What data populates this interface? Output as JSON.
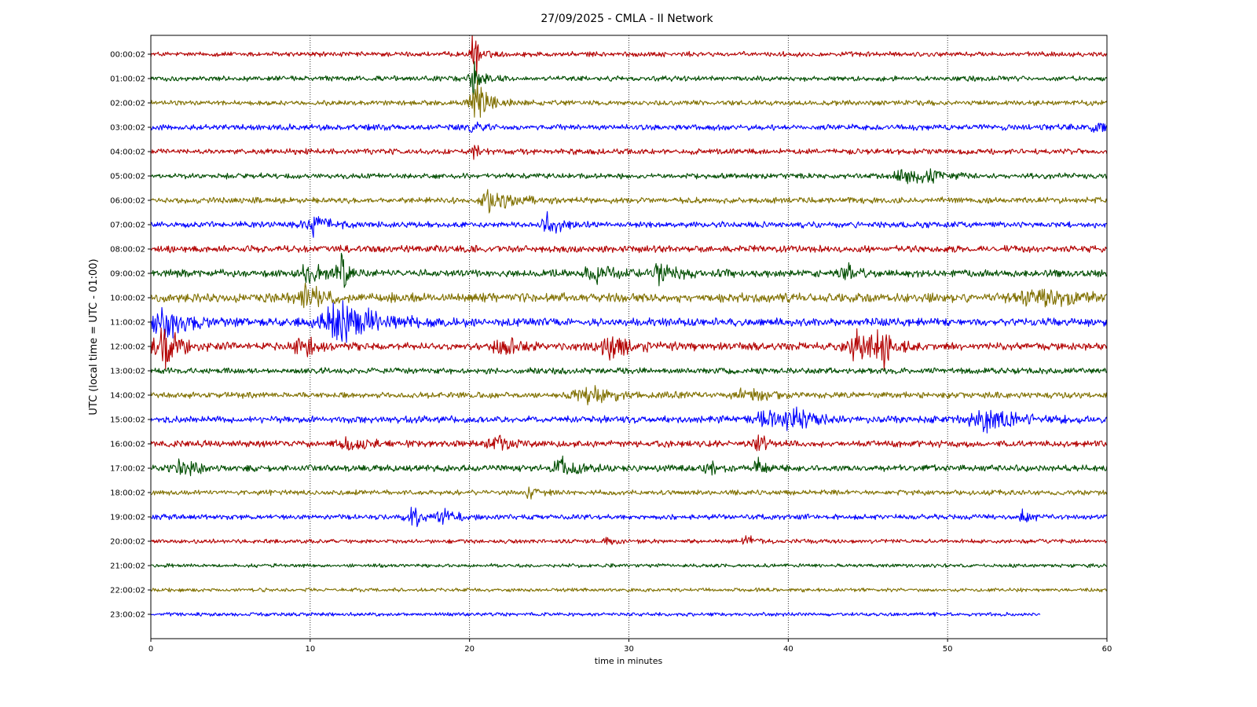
{
  "chart_data": {
    "type": "line",
    "title": "27/09/2025 - CMLA - II Network",
    "xlabel": "time in minutes",
    "ylabel": "UTC (local time = UTC - 01:00)",
    "xlim": [
      0,
      60
    ],
    "x_ticks": [
      0,
      10,
      20,
      30,
      40,
      50,
      60
    ],
    "grid": "vertical-dotted",
    "trace_colors": [
      "#b30000",
      "#004d00",
      "#807000",
      "#0000ff"
    ],
    "rows": [
      {
        "label": "00:00:02",
        "end_min": 60,
        "amplitude": 0.22,
        "events": [
          {
            "t": 20.3,
            "amp": 2.6,
            "dur": 0.5
          }
        ]
      },
      {
        "label": "01:00:02",
        "end_min": 60,
        "amplitude": 0.22,
        "events": [
          {
            "t": 20.3,
            "amp": 1.6,
            "dur": 0.8
          }
        ]
      },
      {
        "label": "02:00:02",
        "end_min": 60,
        "amplitude": 0.22,
        "events": [
          {
            "t": 20.5,
            "amp": 1.6,
            "dur": 1.2
          }
        ]
      },
      {
        "label": "03:00:02",
        "end_min": 60,
        "amplitude": 0.26,
        "events": [
          {
            "t": 20.2,
            "amp": 1.0,
            "dur": 0.5
          },
          {
            "t": 59.3,
            "amp": 0.5,
            "dur": 1.0
          }
        ]
      },
      {
        "label": "04:00:02",
        "end_min": 60,
        "amplitude": 0.24,
        "events": [
          {
            "t": 20.3,
            "amp": 0.9,
            "dur": 0.6
          }
        ]
      },
      {
        "label": "05:00:02",
        "end_min": 60,
        "amplitude": 0.24,
        "events": [
          {
            "t": 47.2,
            "amp": 0.6,
            "dur": 1.5
          },
          {
            "t": 48.6,
            "amp": 0.8,
            "dur": 1.0
          }
        ]
      },
      {
        "label": "06:00:02",
        "end_min": 60,
        "amplitude": 0.26,
        "events": [
          {
            "t": 21.5,
            "amp": 0.9,
            "dur": 2.0
          }
        ]
      },
      {
        "label": "07:00:02",
        "end_min": 60,
        "amplitude": 0.26,
        "events": [
          {
            "t": 10.2,
            "amp": 0.9,
            "dur": 1.5
          },
          {
            "t": 25.0,
            "amp": 1.1,
            "dur": 1.0
          }
        ]
      },
      {
        "label": "08:00:02",
        "end_min": 60,
        "amplitude": 0.3,
        "events": []
      },
      {
        "label": "09:00:02",
        "end_min": 60,
        "amplitude": 0.32,
        "events": [
          {
            "t": 10.0,
            "amp": 0.9,
            "dur": 1.5
          },
          {
            "t": 12.0,
            "amp": 1.3,
            "dur": 0.8
          },
          {
            "t": 28.0,
            "amp": 0.6,
            "dur": 2.0
          },
          {
            "t": 32.0,
            "amp": 0.9,
            "dur": 1.5
          },
          {
            "t": 43.6,
            "amp": 0.9,
            "dur": 1.0
          }
        ]
      },
      {
        "label": "10:00:02",
        "end_min": 60,
        "amplitude": 0.4,
        "events": [
          {
            "t": 9.8,
            "amp": 1.2,
            "dur": 1.5
          },
          {
            "t": 56.0,
            "amp": 0.5,
            "dur": 4.0
          }
        ]
      },
      {
        "label": "11:00:02",
        "end_min": 60,
        "amplitude": 0.34,
        "events": [
          {
            "t": 0.8,
            "amp": 1.8,
            "dur": 2.0
          },
          {
            "t": 12.0,
            "amp": 1.8,
            "dur": 3.5
          }
        ]
      },
      {
        "label": "12:00:02",
        "end_min": 60,
        "amplitude": 0.32,
        "events": [
          {
            "t": 0.8,
            "amp": 2.2,
            "dur": 1.5
          },
          {
            "t": 9.5,
            "amp": 1.0,
            "dur": 1.5
          },
          {
            "t": 21.9,
            "amp": 0.9,
            "dur": 1.5
          },
          {
            "t": 29.0,
            "amp": 0.9,
            "dur": 3.0
          },
          {
            "t": 44.5,
            "amp": 1.2,
            "dur": 2.0
          },
          {
            "t": 45.9,
            "amp": 1.8,
            "dur": 0.8
          }
        ]
      },
      {
        "label": "13:00:02",
        "end_min": 60,
        "amplitude": 0.26,
        "events": []
      },
      {
        "label": "14:00:02",
        "end_min": 60,
        "amplitude": 0.26,
        "events": [
          {
            "t": 27.5,
            "amp": 0.6,
            "dur": 3.0
          },
          {
            "t": 37.5,
            "amp": 0.6,
            "dur": 2.0
          }
        ]
      },
      {
        "label": "15:00:02",
        "end_min": 60,
        "amplitude": 0.3,
        "events": [
          {
            "t": 38.5,
            "amp": 0.9,
            "dur": 1.5
          },
          {
            "t": 40.5,
            "amp": 0.9,
            "dur": 2.0
          },
          {
            "t": 52.5,
            "amp": 0.8,
            "dur": 3.0
          }
        ]
      },
      {
        "label": "16:00:02",
        "end_min": 60,
        "amplitude": 0.28,
        "events": [
          {
            "t": 12.5,
            "amp": 0.6,
            "dur": 1.5
          },
          {
            "t": 21.8,
            "amp": 0.6,
            "dur": 1.5
          },
          {
            "t": 38.2,
            "amp": 0.6,
            "dur": 1.0
          }
        ]
      },
      {
        "label": "17:00:02",
        "end_min": 60,
        "amplitude": 0.28,
        "events": [
          {
            "t": 2.0,
            "amp": 0.6,
            "dur": 1.5
          },
          {
            "t": 25.8,
            "amp": 0.9,
            "dur": 1.5
          },
          {
            "t": 35.0,
            "amp": 0.5,
            "dur": 1.0
          },
          {
            "t": 38.1,
            "amp": 0.7,
            "dur": 0.6
          }
        ]
      },
      {
        "label": "18:00:02",
        "end_min": 60,
        "amplitude": 0.22,
        "events": [
          {
            "t": 23.8,
            "amp": 0.5,
            "dur": 0.8
          }
        ]
      },
      {
        "label": "19:00:02",
        "end_min": 60,
        "amplitude": 0.22,
        "events": [
          {
            "t": 16.5,
            "amp": 0.7,
            "dur": 1.5
          },
          {
            "t": 18.5,
            "amp": 0.6,
            "dur": 1.0
          },
          {
            "t": 54.8,
            "amp": 0.6,
            "dur": 0.8
          }
        ]
      },
      {
        "label": "20:00:02",
        "end_min": 60,
        "amplitude": 0.18,
        "events": [
          {
            "t": 28.6,
            "amp": 0.4,
            "dur": 0.8
          },
          {
            "t": 37.4,
            "amp": 0.5,
            "dur": 0.8
          }
        ]
      },
      {
        "label": "21:00:02",
        "end_min": 60,
        "amplitude": 0.16,
        "events": []
      },
      {
        "label": "22:00:02",
        "end_min": 60,
        "amplitude": 0.16,
        "events": []
      },
      {
        "label": "23:00:02",
        "end_min": 55.8,
        "amplitude": 0.16,
        "events": []
      }
    ]
  }
}
